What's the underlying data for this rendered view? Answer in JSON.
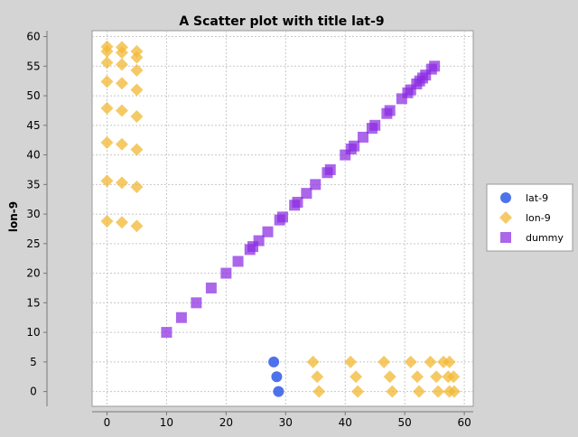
{
  "chart_data": {
    "type": "scatter",
    "title": "A Scatter plot with title lat-9",
    "xlabel": "",
    "ylabel": "lon-9",
    "xlim": [
      -2.5,
      61.5
    ],
    "ylim": [
      -2.5,
      61
    ],
    "x_ticks": [
      0,
      10,
      20,
      30,
      40,
      50,
      60
    ],
    "y_ticks": [
      0,
      5,
      10,
      15,
      20,
      25,
      30,
      35,
      40,
      45,
      50,
      55,
      60
    ],
    "grid": true,
    "legend_position": "right",
    "series": [
      {
        "name": "lat-9",
        "marker": "circle",
        "color": "#3b63e8",
        "points": [
          [
            28.0,
            5.0
          ],
          [
            28.5,
            2.5
          ],
          [
            28.8,
            0.0
          ]
        ]
      },
      {
        "name": "lon-9",
        "marker": "diamond",
        "color": "#f2b833",
        "points": [
          [
            0,
            58.3
          ],
          [
            2.5,
            58.2
          ],
          [
            5,
            57.5
          ],
          [
            0,
            57.5
          ],
          [
            2.5,
            57.3
          ],
          [
            5,
            56.5
          ],
          [
            0,
            55.6
          ],
          [
            2.5,
            55.3
          ],
          [
            5,
            54.3
          ],
          [
            0,
            52.4
          ],
          [
            2.5,
            52.1
          ],
          [
            5,
            51.0
          ],
          [
            0,
            47.9
          ],
          [
            2.5,
            47.5
          ],
          [
            5,
            46.5
          ],
          [
            0,
            42.1
          ],
          [
            2.5,
            41.8
          ],
          [
            5,
            40.9
          ],
          [
            0,
            35.6
          ],
          [
            2.5,
            35.3
          ],
          [
            5,
            34.6
          ],
          [
            0,
            28.8
          ],
          [
            2.5,
            28.6
          ],
          [
            5,
            28.0
          ],
          [
            34.6,
            5.0
          ],
          [
            40.9,
            5.0
          ],
          [
            46.5,
            5.0
          ],
          [
            51.0,
            5.0
          ],
          [
            54.3,
            5.0
          ],
          [
            56.5,
            5.0
          ],
          [
            57.5,
            5.0
          ],
          [
            35.3,
            2.5
          ],
          [
            41.8,
            2.5
          ],
          [
            47.5,
            2.5
          ],
          [
            52.1,
            2.5
          ],
          [
            55.3,
            2.5
          ],
          [
            57.3,
            2.5
          ],
          [
            58.2,
            2.5
          ],
          [
            35.6,
            0.0
          ],
          [
            42.1,
            0.0
          ],
          [
            47.9,
            0.0
          ],
          [
            52.4,
            0.0
          ],
          [
            55.6,
            0.0
          ],
          [
            57.5,
            0.0
          ],
          [
            58.3,
            0.0
          ]
        ]
      },
      {
        "name": "dummy",
        "marker": "square",
        "color": "#8a2be2",
        "points": [
          [
            10,
            10
          ],
          [
            12.5,
            12.5
          ],
          [
            15,
            15
          ],
          [
            17.5,
            17.5
          ],
          [
            20,
            20
          ],
          [
            22,
            22
          ],
          [
            24,
            24
          ],
          [
            24.5,
            24.5
          ],
          [
            25.5,
            25.5
          ],
          [
            27,
            27
          ],
          [
            29,
            29
          ],
          [
            29.5,
            29.5
          ],
          [
            31.5,
            31.5
          ],
          [
            32,
            32
          ],
          [
            33.5,
            33.5
          ],
          [
            35,
            35
          ],
          [
            37,
            37
          ],
          [
            37.5,
            37.5
          ],
          [
            40,
            40
          ],
          [
            41,
            41
          ],
          [
            41.5,
            41.5
          ],
          [
            43,
            43
          ],
          [
            44.5,
            44.5
          ],
          [
            45,
            45
          ],
          [
            47,
            47
          ],
          [
            47.5,
            47.5
          ],
          [
            49.5,
            49.5
          ],
          [
            50.5,
            50.5
          ],
          [
            51,
            51
          ],
          [
            52,
            52
          ],
          [
            52.5,
            52.5
          ],
          [
            53,
            53
          ],
          [
            53.5,
            53.5
          ],
          [
            54.5,
            54.5
          ],
          [
            55,
            55
          ]
        ]
      }
    ]
  }
}
